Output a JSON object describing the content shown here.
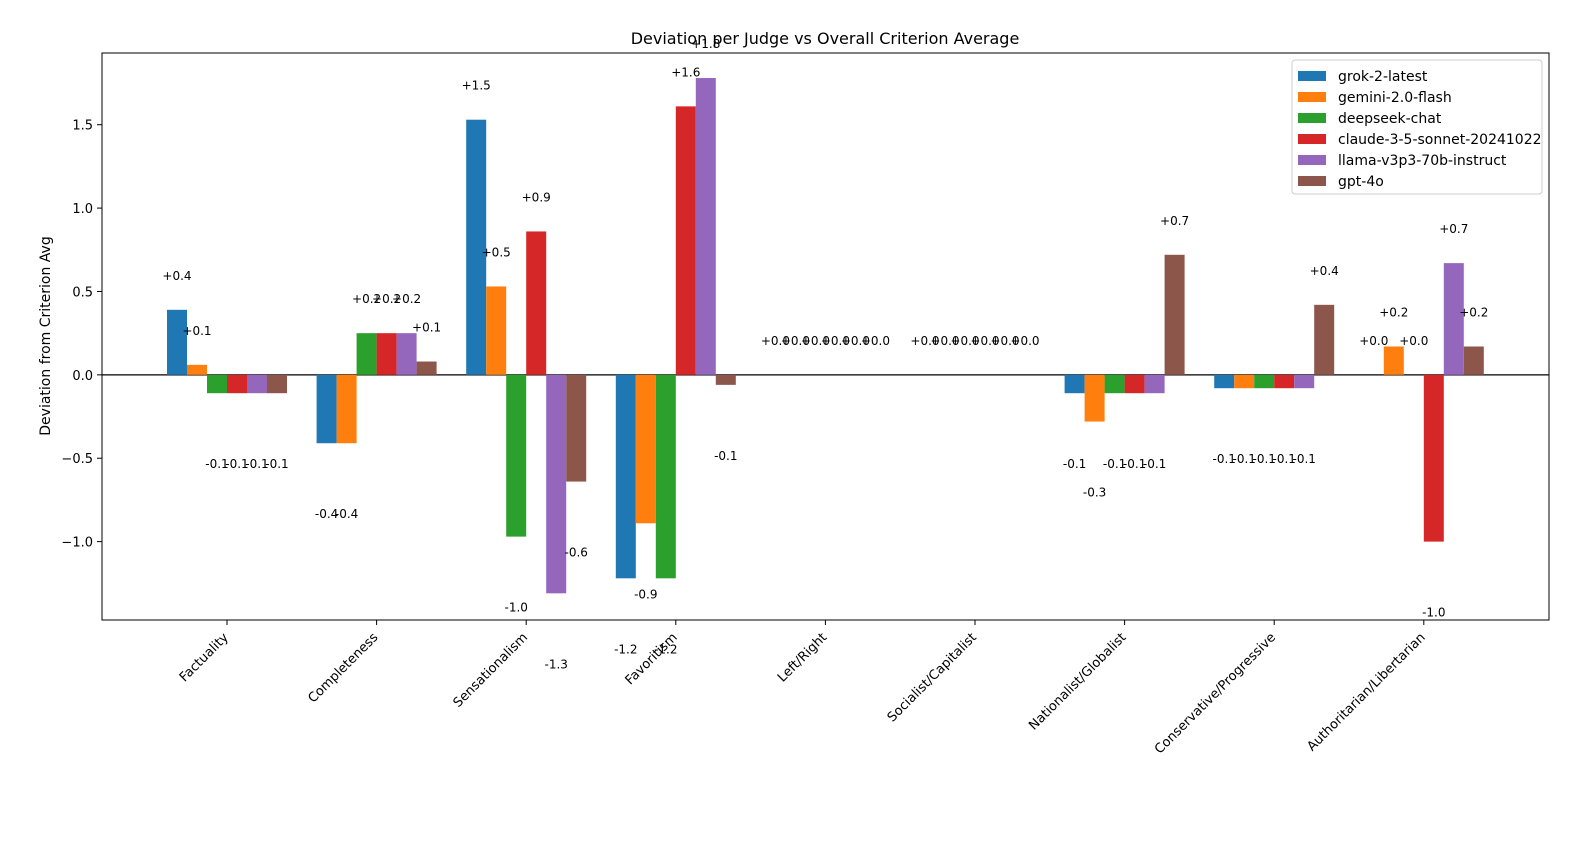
{
  "chart_data": {
    "type": "bar",
    "title": "Deviation per Judge vs Overall Criterion Average",
    "xlabel": "",
    "ylabel": "Deviation from Criterion Avg",
    "ylim": [
      -1.47,
      1.93
    ],
    "yticks": [
      -1.0,
      -0.5,
      0.0,
      0.5,
      1.0,
      1.5
    ],
    "ytick_labels": [
      "−1.0",
      "−0.5",
      "0.0",
      "0.5",
      "1.0",
      "1.5"
    ],
    "legend_position": "top-right",
    "categories": [
      "Factuality",
      "Completeness",
      "Sensationalism",
      "Favoritism",
      "Left/Right",
      "Socialist/Capitalist",
      "Nationalist/Globalist",
      "Conservative/Progressive",
      "Authoritarian/Libertarian"
    ],
    "series": [
      {
        "name": "grok-2-latest",
        "color": "#1f77b4",
        "values": [
          0.39,
          -0.41,
          1.53,
          -1.22,
          0.0,
          0.0,
          -0.11,
          -0.08,
          0.0
        ]
      },
      {
        "name": "gemini-2.0-flash",
        "color": "#ff7f0e",
        "values": [
          0.06,
          -0.41,
          0.53,
          -0.89,
          0.0,
          0.0,
          -0.28,
          -0.08,
          0.17
        ]
      },
      {
        "name": "deepseek-chat",
        "color": "#2ca02c",
        "values": [
          -0.11,
          0.25,
          -0.97,
          -1.22,
          0.0,
          0.0,
          -0.11,
          -0.08,
          0.0
        ]
      },
      {
        "name": "claude-3-5-sonnet-20241022",
        "color": "#d62728",
        "values": [
          -0.11,
          0.25,
          0.86,
          1.61,
          0.0,
          0.0,
          -0.11,
          -0.08,
          -1.0
        ]
      },
      {
        "name": "llama-v3p3-70b-instruct",
        "color": "#9467bd",
        "values": [
          -0.11,
          0.25,
          -1.31,
          1.78,
          0.0,
          0.0,
          -0.11,
          -0.08,
          0.67
        ]
      },
      {
        "name": "gpt-4o",
        "color": "#8c564b",
        "values": [
          -0.11,
          0.08,
          -0.64,
          -0.06,
          0.0,
          0.0,
          0.72,
          0.42,
          0.17
        ]
      }
    ],
    "value_labels": [
      [
        "+0.4",
        "-0.4",
        "+1.5",
        "-1.2",
        "+0.0",
        "+0.0",
        "-0.1",
        "-0.1",
        "+0.0"
      ],
      [
        "+0.1",
        "-0.4",
        "+0.5",
        "-0.9",
        "+0.0",
        "+0.0",
        "-0.3",
        "-0.1",
        "+0.2"
      ],
      [
        "-0.1",
        "+0.2",
        "-1.0",
        "-1.2",
        "+0.0",
        "+0.0",
        "-0.1",
        "-0.1",
        "+0.0"
      ],
      [
        "-0.1",
        "+0.2",
        "+0.9",
        "+1.6",
        "+0.0",
        "+0.0",
        "-0.1",
        "-0.1",
        "-1.0"
      ],
      [
        "-0.1",
        "+0.2",
        "-1.3",
        "+1.8",
        "+0.0",
        "+0.0",
        "-0.1",
        "-0.1",
        "+0.7"
      ],
      [
        "-0.1",
        "+0.1",
        "-0.6",
        "-0.1",
        "+0.0",
        "+0.0",
        "+0.7",
        "+0.4",
        "+0.2"
      ]
    ]
  }
}
